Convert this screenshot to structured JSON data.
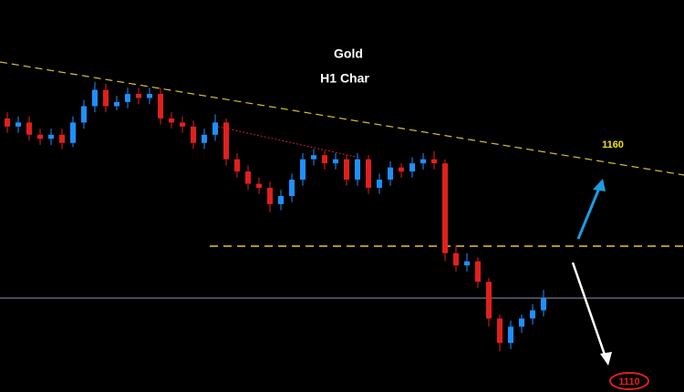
{
  "chart_data": {
    "type": "candlestick",
    "title": "Gold",
    "subtitle": "H1 Char",
    "annotations": [
      "1160",
      "1110"
    ],
    "up_color": "#1e90ff",
    "down_color": "#e0201e",
    "ylim": [
      1106,
      1202
    ],
    "open": [
      1173,
      1171,
      1172,
      1169,
      1168,
      1169,
      1167,
      1172,
      1176,
      1180,
      1176,
      1177,
      1179,
      1178,
      1179,
      1173,
      1172,
      1171,
      1167,
      1169,
      1172,
      1163,
      1160,
      1157,
      1156,
      1152,
      1154,
      1158,
      1163,
      1164,
      1162,
      1163,
      1158,
      1163,
      1156,
      1158,
      1161,
      1160,
      1162,
      1163,
      1162,
      1140,
      1137,
      1138,
      1133,
      1124,
      1118,
      1122,
      1124,
      1126
    ],
    "high": [
      1174.5,
      1173.5,
      1173.5,
      1170.5,
      1170.5,
      1170.5,
      1173.5,
      1177.5,
      1182,
      1181.5,
      1178.5,
      1180.5,
      1180.5,
      1180.5,
      1180.5,
      1174.5,
      1173.5,
      1172.5,
      1170.5,
      1174,
      1173,
      1164.5,
      1161.5,
      1158.5,
      1157.5,
      1155.5,
      1159.5,
      1164.5,
      1165.5,
      1165,
      1164.5,
      1164,
      1164.5,
      1164,
      1159.5,
      1162.5,
      1162,
      1163.5,
      1164.5,
      1165,
      1163,
      1142,
      1140,
      1139,
      1134,
      1125,
      1123.5,
      1125,
      1127.5,
      1131
    ],
    "low": [
      1169.5,
      1169.5,
      1167.5,
      1166.5,
      1166.5,
      1165.5,
      1166,
      1170.5,
      1174.5,
      1174.5,
      1175,
      1175.5,
      1176.5,
      1176.5,
      1171.5,
      1170.5,
      1169.5,
      1165.5,
      1165.5,
      1167.5,
      1161.5,
      1158.5,
      1155.5,
      1154.5,
      1150,
      1150.5,
      1152.5,
      1156.5,
      1161.5,
      1160.5,
      1160.5,
      1156.5,
      1156.5,
      1154.5,
      1154.5,
      1156.5,
      1158.5,
      1158.5,
      1160.5,
      1160.5,
      1138,
      1135.5,
      1135.5,
      1131.5,
      1122,
      1116,
      1116.5,
      1120.5,
      1122.5,
      1124.5
    ],
    "close": [
      1171,
      1172,
      1169,
      1168,
      1169,
      1167,
      1172,
      1176,
      1180,
      1176,
      1177,
      1179,
      1178,
      1179,
      1173,
      1172,
      1171,
      1167,
      1169,
      1172,
      1163,
      1160,
      1157,
      1156,
      1152,
      1154,
      1158,
      1163,
      1164,
      1162,
      1163,
      1158,
      1163,
      1156,
      1158,
      1161,
      1160,
      1162,
      1163,
      1162,
      1140,
      1137,
      1138,
      1133,
      1124,
      1118,
      1122,
      1124,
      1126,
      1129
    ]
  }
}
